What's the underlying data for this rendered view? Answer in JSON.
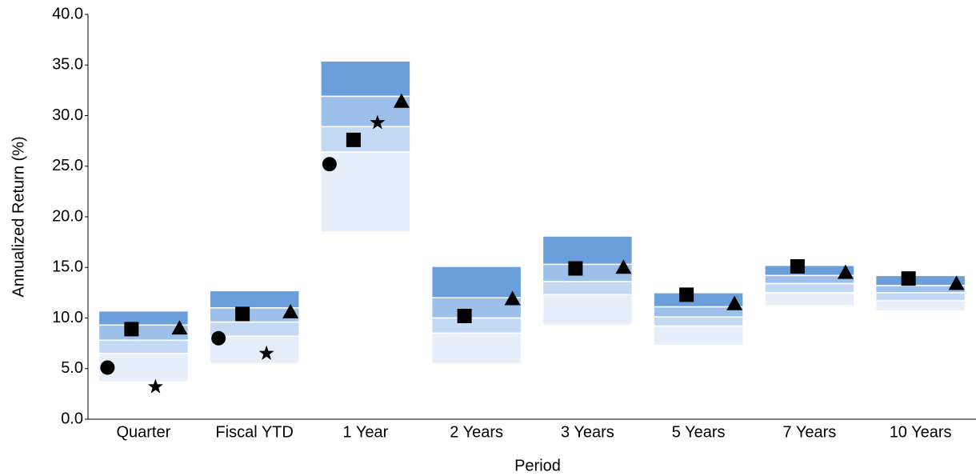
{
  "chart_data": {
    "type": "floating_bar",
    "xlabel": "Period",
    "ylabel": "Annualized Return (%)",
    "categories": [
      "Quarter",
      "Fiscal YTD",
      "1 Year",
      "2 Years",
      "3 Years",
      "5 Years",
      "7 Years",
      "10 Years"
    ],
    "ranges": [
      [
        10.7,
        9.3,
        7.8,
        6.5,
        3.7
      ],
      [
        12.7,
        11.0,
        9.6,
        8.2,
        5.5
      ],
      [
        35.4,
        31.9,
        28.9,
        26.4,
        18.5
      ],
      [
        15.1,
        12.0,
        10.0,
        8.5,
        5.5
      ],
      [
        18.1,
        15.3,
        13.6,
        12.3,
        9.3
      ],
      [
        12.5,
        11.1,
        10.1,
        9.2,
        7.3
      ],
      [
        15.2,
        14.2,
        13.4,
        12.5,
        11.2
      ],
      [
        14.2,
        13.2,
        12.5,
        11.7,
        10.7
      ]
    ],
    "range_colors": [
      "#6a9fdc",
      "#9dc0ea",
      "#c3d9f3",
      "#e6eef9"
    ],
    "series": [
      {
        "marker": "circle",
        "color": "#000000",
        "values": [
          5.1,
          8.0,
          25.2,
          null,
          null,
          null,
          null,
          null
        ]
      },
      {
        "marker": "square",
        "color": "#000000",
        "values": [
          8.9,
          10.4,
          27.6,
          10.2,
          14.9,
          12.3,
          15.1,
          13.9
        ]
      },
      {
        "marker": "star",
        "color": "#000000",
        "values": [
          3.2,
          6.5,
          29.3,
          null,
          null,
          null,
          null,
          null
        ]
      },
      {
        "marker": "triangle",
        "color": "#000000",
        "values": [
          9.0,
          10.6,
          31.4,
          11.9,
          15.0,
          11.4,
          14.5,
          13.4
        ]
      }
    ],
    "ylim": [
      0,
      40
    ],
    "yticks": [
      {
        "value": 0,
        "label": "0.0"
      },
      {
        "value": 5,
        "label": "5.0"
      },
      {
        "value": 10,
        "label": "10.0"
      },
      {
        "value": 15,
        "label": "15.0"
      },
      {
        "value": 20,
        "label": "20.0"
      },
      {
        "value": 25,
        "label": "25.0"
      },
      {
        "value": 30,
        "label": "30.0"
      },
      {
        "value": 35,
        "label": "35.0"
      },
      {
        "value": 40,
        "label": "40.0"
      }
    ]
  }
}
